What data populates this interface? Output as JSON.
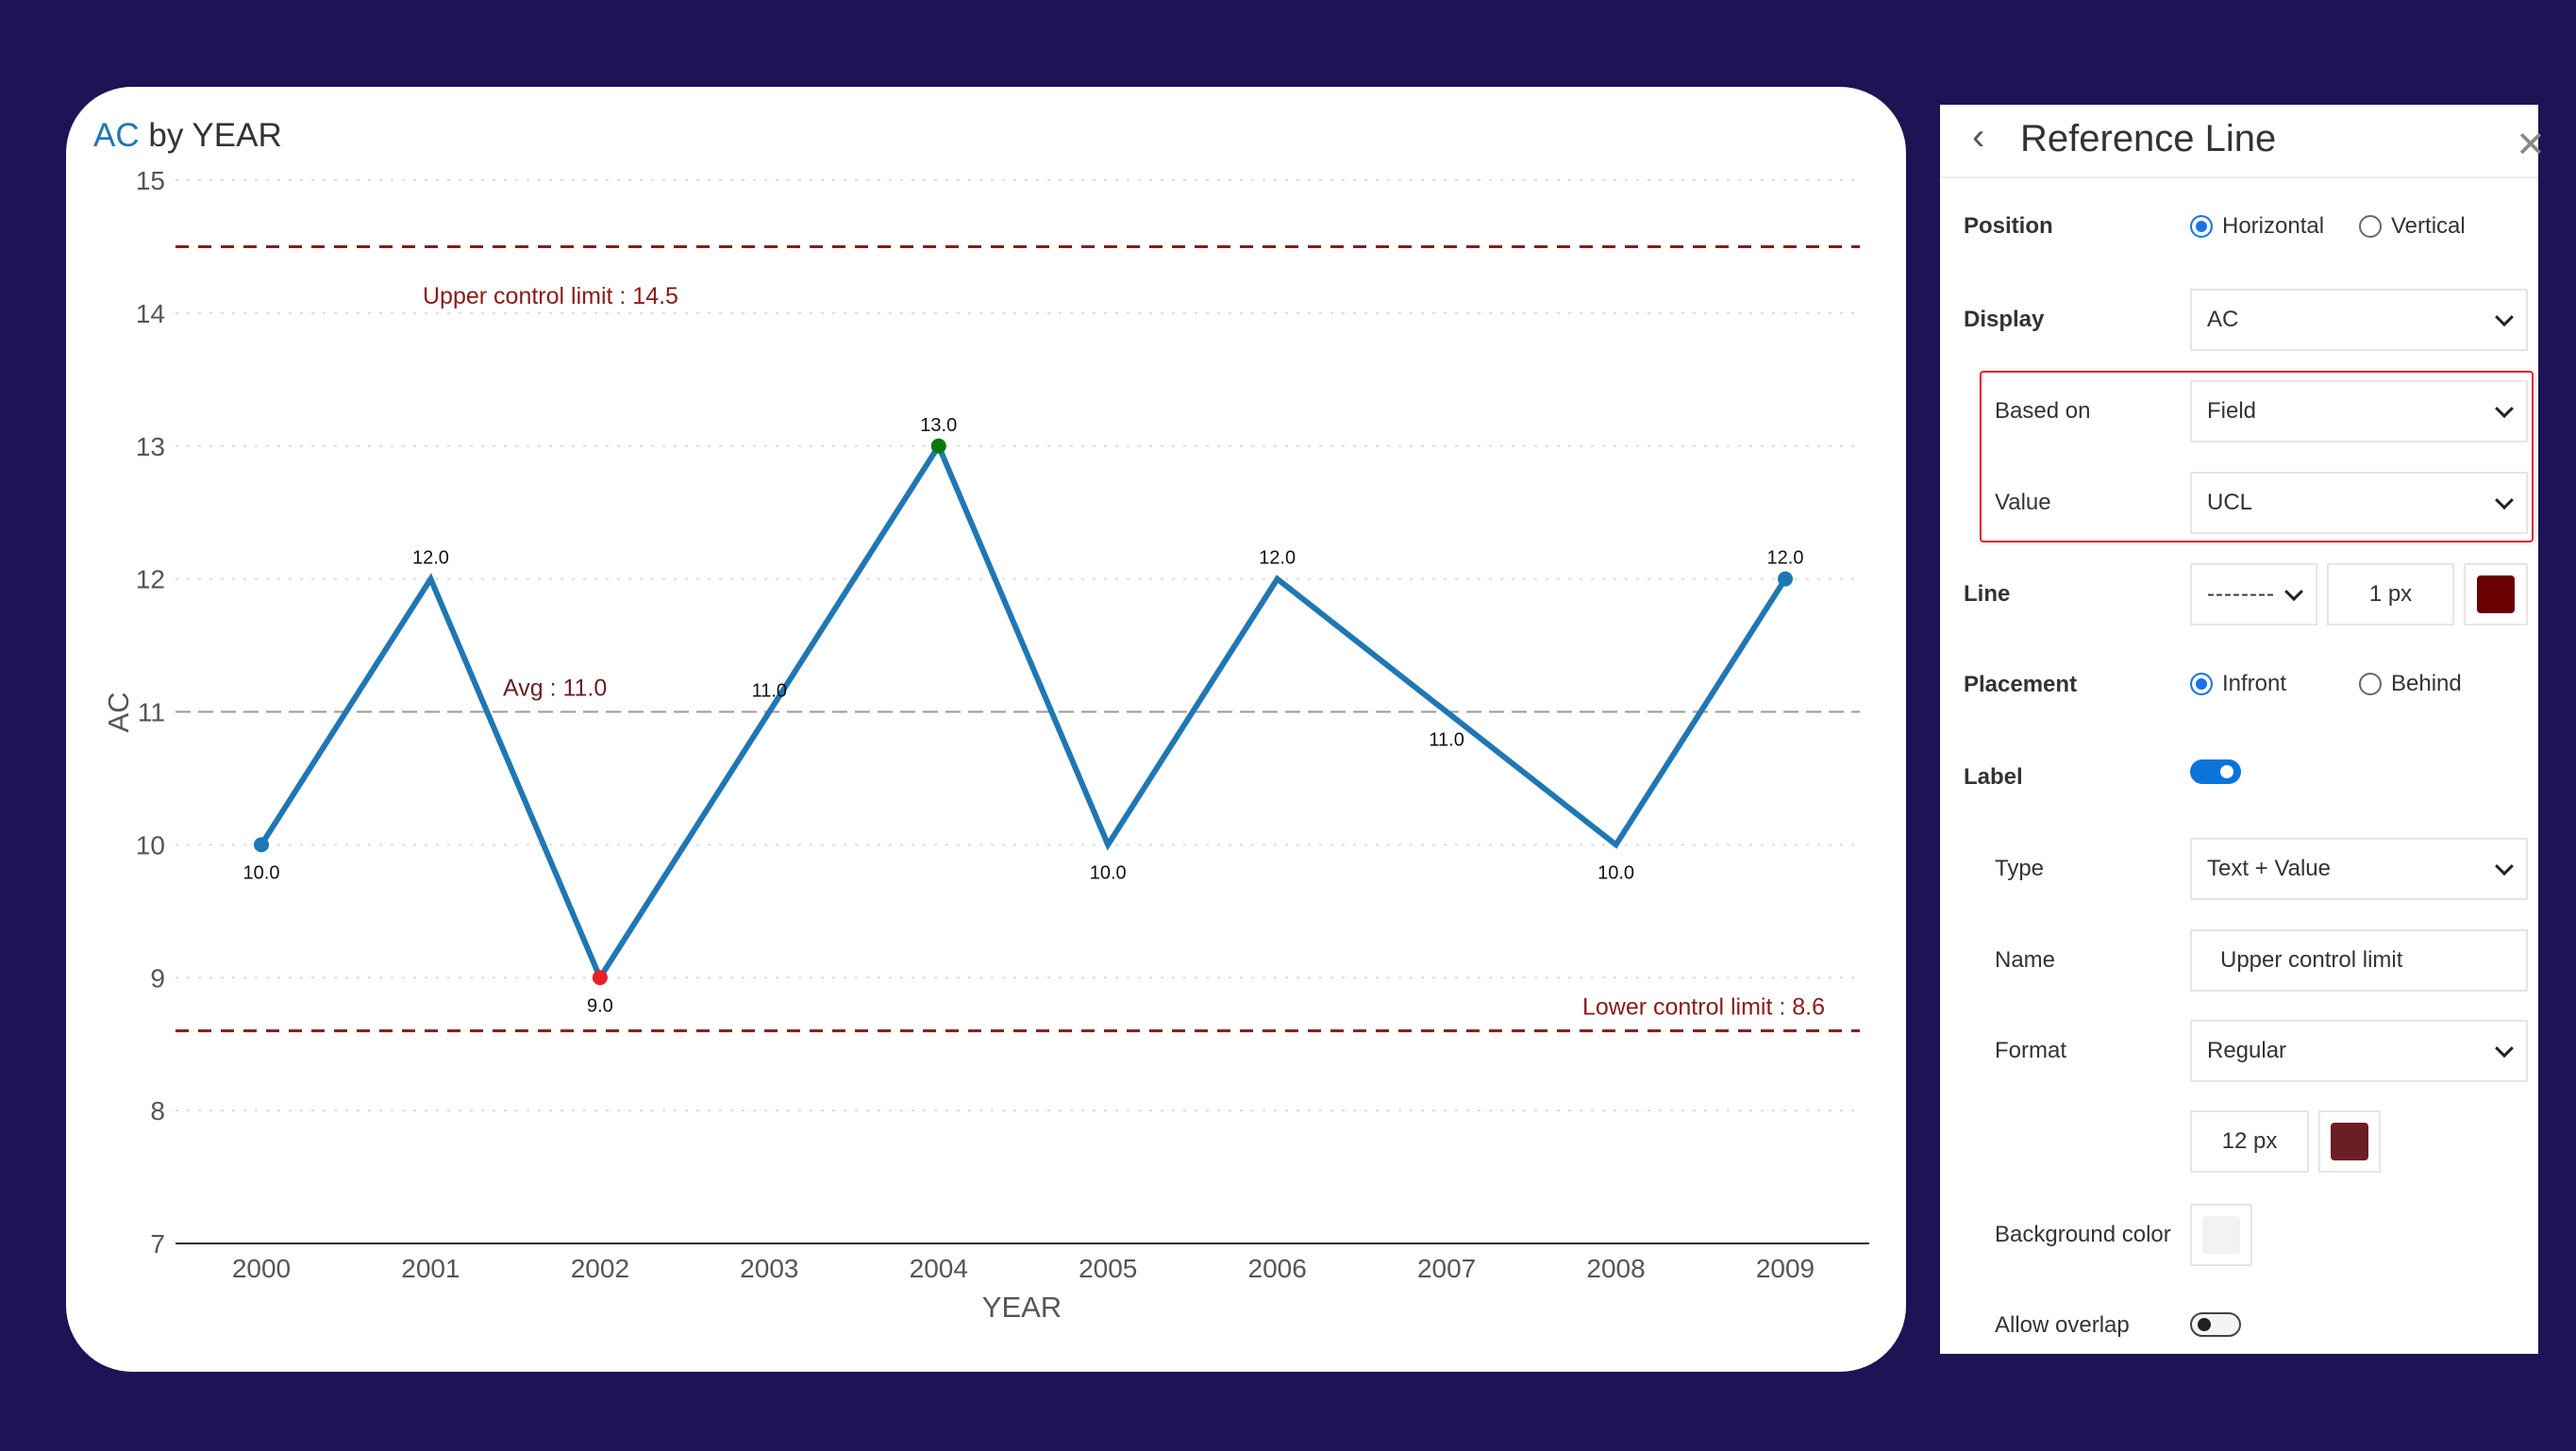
{
  "chart_data": {
    "type": "line",
    "title_accent": "AC",
    "title_rest": " by YEAR",
    "xlabel": "YEAR",
    "ylabel": "AC",
    "categories": [
      "2000",
      "2001",
      "2002",
      "2003",
      "2004",
      "2005",
      "2006",
      "2007",
      "2008",
      "2009"
    ],
    "values": [
      10,
      12,
      9,
      11,
      13,
      10,
      12,
      11,
      10,
      12
    ],
    "data_labels": [
      "10.0",
      "12.0",
      "9.0",
      "11.0",
      "13.0",
      "10.0",
      "12.0",
      "11.0",
      "10.0",
      "12.0"
    ],
    "ylim": [
      7,
      15
    ],
    "yticks": [
      "7",
      "8",
      "9",
      "10",
      "11",
      "12",
      "13",
      "14",
      "15"
    ],
    "grid": true,
    "line_color": "#1f77b4",
    "max_color": "#0a7a0a",
    "min_color": "#e8202a",
    "reference_lines": [
      {
        "label": "Upper control limit : 14.5",
        "value": 14.5,
        "color": "#8b1a1a",
        "style": "dashed"
      },
      {
        "label": "Avg : 11.0",
        "value": 11.0,
        "color": "#999999",
        "style": "dashed"
      },
      {
        "label": "Lower control limit : 8.6",
        "value": 8.6,
        "color": "#8b1a1a",
        "style": "dashed"
      }
    ]
  },
  "panel": {
    "title": "Reference Line",
    "position": {
      "label": "Position",
      "options": [
        "Horizontal",
        "Vertical"
      ],
      "selected": "Horizontal"
    },
    "display": {
      "label": "Display",
      "value": "AC"
    },
    "based_on": {
      "label": "Based on",
      "value": "Field"
    },
    "value": {
      "label": "Value",
      "value": "UCL"
    },
    "line": {
      "label": "Line",
      "style": "--------",
      "width": "1 px",
      "color": "#6b0000"
    },
    "placement": {
      "label": "Placement",
      "options": [
        "Infront",
        "Behind"
      ],
      "selected": "Infront"
    },
    "label": {
      "label": "Label",
      "enabled": true
    },
    "type": {
      "label": "Type",
      "value": "Text + Value"
    },
    "name": {
      "label": "Name",
      "value": "Upper control limit"
    },
    "format": {
      "label": "Format",
      "value": "Regular",
      "size": "12 px",
      "color": "#6b1f24"
    },
    "background_color": {
      "label": "Background color",
      "color": "#f2f2f2"
    },
    "allow_overlap": {
      "label": "Allow overlap",
      "enabled": false
    }
  }
}
